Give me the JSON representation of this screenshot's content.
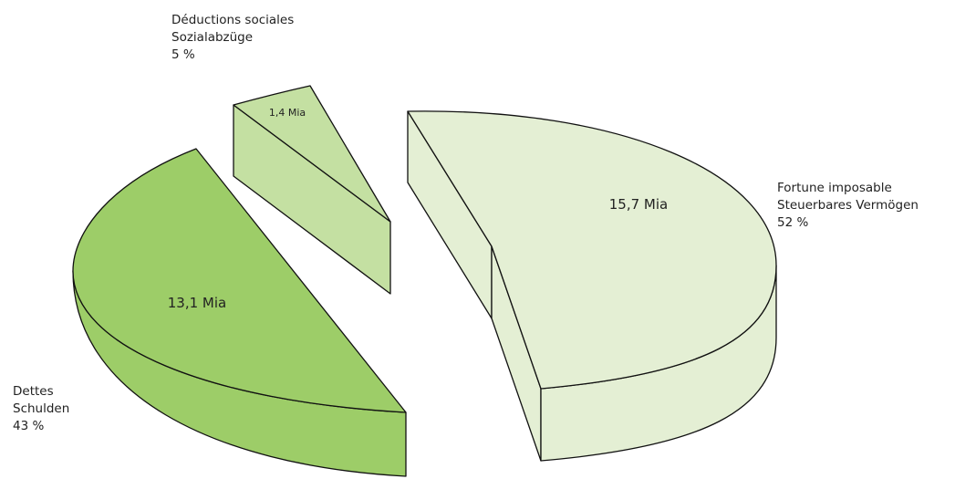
{
  "chart_data": {
    "type": "pie",
    "style": "3d-exploded",
    "slices": [
      {
        "key": "fortune",
        "value": 15.7,
        "value_label": "15,7 Mia",
        "label_fr": "Fortune imposable",
        "label_de": "Steuerbares Vermögen",
        "percent_label": "52 %",
        "color": "#e4efd4"
      },
      {
        "key": "dettes",
        "value": 13.1,
        "value_label": "13,1 Mia",
        "label_fr": "Dettes",
        "label_de": "Schulden",
        "percent_label": "43 %",
        "color": "#9dcd68"
      },
      {
        "key": "deductions",
        "value": 1.4,
        "value_label": "1,4 Mia",
        "label_fr": "Déductions sociales",
        "label_de": "Sozialabzüge",
        "percent_label": "5 %",
        "color": "#c4e0a2"
      }
    ]
  }
}
